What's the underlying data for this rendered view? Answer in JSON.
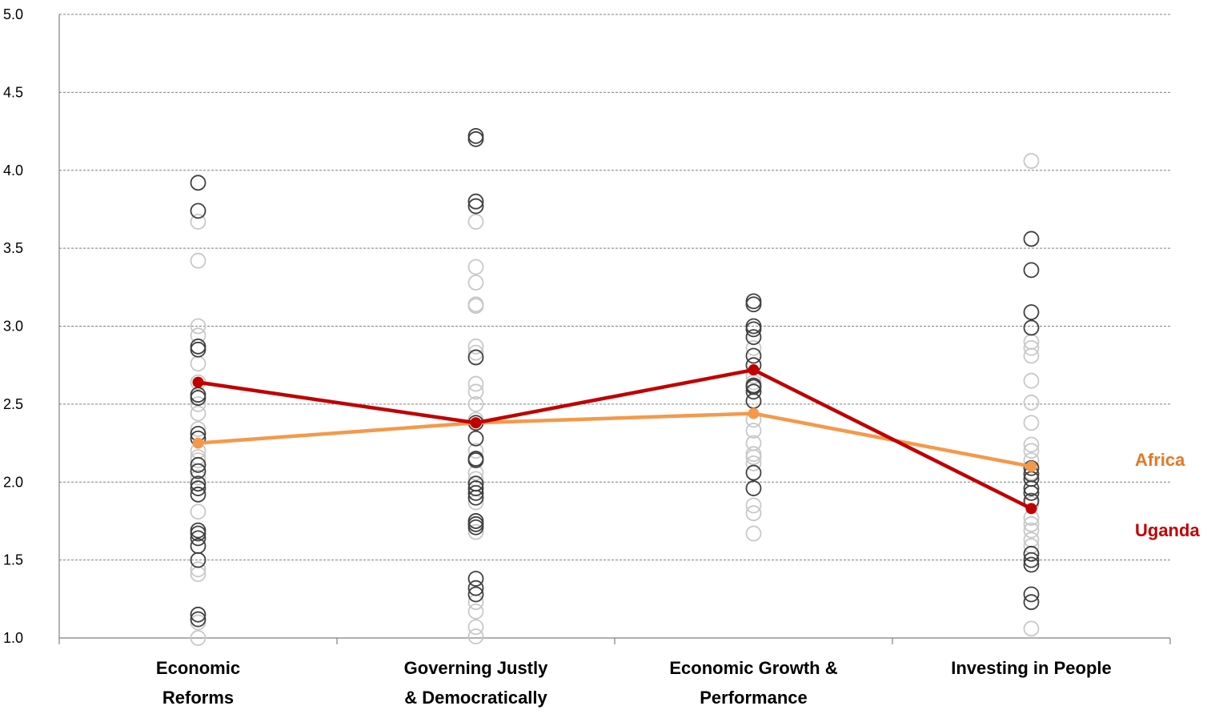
{
  "chart_data": {
    "type": "scatter",
    "ylim": [
      1.0,
      5.0
    ],
    "yticks": [
      "1.0",
      "1.5",
      "2.0",
      "2.5",
      "3.0",
      "3.5",
      "4.0",
      "4.5",
      "5.0"
    ],
    "grid": true,
    "categories": [
      [
        "Economic",
        "Reforms"
      ],
      [
        "Governing Justly",
        "& Democratically"
      ],
      [
        "Economic Growth &",
        "Performance"
      ],
      [
        "Investing in People"
      ]
    ],
    "series": [
      {
        "name": "Africa",
        "color": "#F4994A",
        "label_color": "#E87722",
        "values": [
          2.25,
          2.38,
          2.44,
          2.1
        ]
      },
      {
        "name": "Uganda",
        "color": "#C00000",
        "label_color": "#C00000",
        "values": [
          2.64,
          2.38,
          2.72,
          1.83
        ]
      }
    ],
    "country_points": [
      {
        "category": 0,
        "dark": [
          3.92,
          3.74,
          2.87,
          2.85,
          2.56,
          2.54,
          2.31,
          2.28,
          2.11,
          2.07,
          1.99,
          1.96,
          1.92,
          1.69,
          1.67,
          1.64,
          1.59,
          1.5,
          1.15,
          1.12
        ],
        "light": [
          3.67,
          3.42,
          3.0,
          2.94,
          2.76,
          2.64,
          2.5,
          2.44,
          2.34,
          2.2,
          2.16,
          2.14,
          2.03,
          1.81,
          1.44,
          1.41,
          1.1,
          1.0
        ]
      },
      {
        "category": 1,
        "dark": [
          4.22,
          4.2,
          3.8,
          3.77,
          2.8,
          2.38,
          2.28,
          2.15,
          2.14,
          1.99,
          1.96,
          1.93,
          1.9,
          1.75,
          1.73,
          1.71,
          1.38,
          1.32,
          1.28
        ],
        "light": [
          3.67,
          3.38,
          3.28,
          3.14,
          3.13,
          2.87,
          2.83,
          2.63,
          2.58,
          2.5,
          2.4,
          2.2,
          2.06,
          2.02,
          1.87,
          1.68,
          1.23,
          1.17,
          1.07,
          1.01
        ]
      },
      {
        "category": 2,
        "dark": [
          3.16,
          3.14,
          3.0,
          2.98,
          2.93,
          2.81,
          2.75,
          2.62,
          2.61,
          2.58,
          2.52,
          2.06,
          1.96
        ],
        "light": [
          2.86,
          2.68,
          2.64,
          2.4,
          2.33,
          2.25,
          2.18,
          2.16,
          2.12,
          1.85,
          1.8,
          1.67
        ]
      },
      {
        "category": 3,
        "dark": [
          3.56,
          3.36,
          3.09,
          2.99,
          2.09,
          2.05,
          2.02,
          1.96,
          1.93,
          1.88,
          1.54,
          1.5,
          1.47,
          1.28,
          1.23
        ],
        "light": [
          4.06,
          2.9,
          2.86,
          2.81,
          2.65,
          2.51,
          2.38,
          2.24,
          2.2,
          2.14,
          2.06,
          1.86,
          1.77,
          1.73,
          1.69,
          1.63,
          1.59,
          1.06
        ]
      }
    ]
  }
}
